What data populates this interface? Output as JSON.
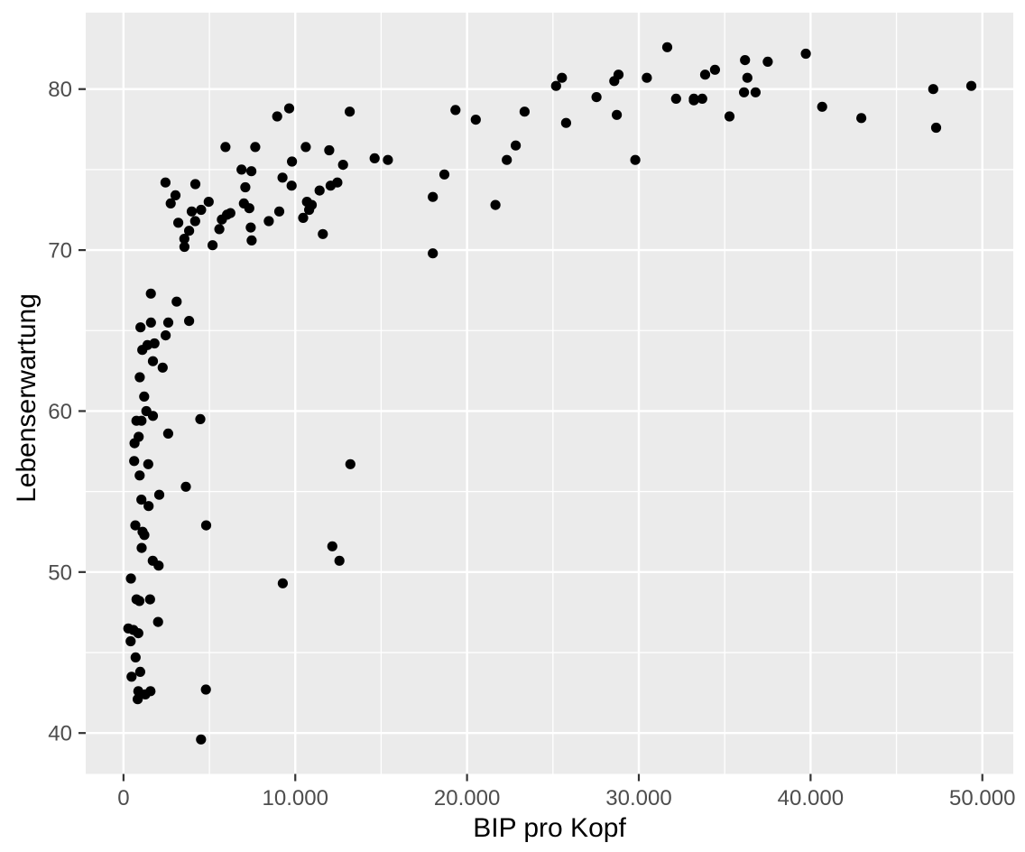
{
  "chart_data": {
    "type": "scatter",
    "title": "",
    "xlabel": "BIP pro Kopf",
    "ylabel": "Lebenserwartung",
    "xlim": [
      -2200,
      51800
    ],
    "ylim": [
      37.46,
      84.75
    ],
    "x_ticks": {
      "values": [
        0,
        10000,
        20000,
        30000,
        40000,
        50000
      ],
      "labels": [
        "0",
        "10.000",
        "20.000",
        "30.000",
        "40.000",
        "50.000"
      ],
      "minor": [
        5000,
        15000,
        25000,
        35000,
        45000
      ]
    },
    "y_ticks": {
      "values": [
        40,
        50,
        60,
        70,
        80
      ],
      "labels": [
        "40",
        "50",
        "60",
        "70",
        "80"
      ],
      "minor": [
        45,
        55,
        65,
        75
      ]
    },
    "grid": "major and minor white gridlines on gray panel",
    "legend": "none",
    "style": {
      "page_background": "#FFFFFF",
      "panel_background": "#EBEBEB",
      "grid_color": "#FFFFFF",
      "point_color": "#000000",
      "tick_label_color": "#4D4D4D",
      "axis_title_color": "#000000",
      "tick_mark_color": "#333333"
    },
    "points": [
      [
        974,
        43.8
      ],
      [
        5937,
        76.4
      ],
      [
        6223,
        72.3
      ],
      [
        4797,
        42.7
      ],
      [
        12779,
        75.3
      ],
      [
        34435,
        81.2
      ],
      [
        36126,
        79.8
      ],
      [
        29796,
        75.6
      ],
      [
        1391,
        64.1
      ],
      [
        33693,
        79.4
      ],
      [
        1441,
        56.7
      ],
      [
        3822,
        65.6
      ],
      [
        7446,
        74.9
      ],
      [
        12570,
        50.7
      ],
      [
        9066,
        72.4
      ],
      [
        10681,
        73.0
      ],
      [
        1217,
        52.3
      ],
      [
        430,
        49.6
      ],
      [
        1714,
        59.7
      ],
      [
        2042,
        50.4
      ],
      [
        36319,
        80.7
      ],
      [
        706,
        44.7
      ],
      [
        1704,
        50.7
      ],
      [
        13172,
        78.6
      ],
      [
        4959,
        73.0
      ],
      [
        7007,
        72.9
      ],
      [
        986,
        65.2
      ],
      [
        278,
        46.5
      ],
      [
        3633,
        55.3
      ],
      [
        9645,
        78.8
      ],
      [
        1545,
        48.3
      ],
      [
        14619,
        75.7
      ],
      [
        8948,
        78.3
      ],
      [
        22833,
        76.5
      ],
      [
        35278,
        78.3
      ],
      [
        2082,
        54.8
      ],
      [
        6025,
        72.2
      ],
      [
        6873,
        75.0
      ],
      [
        5581,
        71.3
      ],
      [
        5728,
        71.9
      ],
      [
        12154,
        51.6
      ],
      [
        641,
        58.0
      ],
      [
        691,
        52.9
      ],
      [
        33207,
        79.3
      ],
      [
        30470,
        80.7
      ],
      [
        13206,
        56.7
      ],
      [
        753,
        59.4
      ],
      [
        32170,
        79.4
      ],
      [
        1328,
        60.0
      ],
      [
        27538,
        79.5
      ],
      [
        5186,
        70.3
      ],
      [
        943,
        56.0
      ],
      [
        579,
        46.4
      ],
      [
        1202,
        60.9
      ],
      [
        3548,
        70.2
      ],
      [
        39725,
        82.2
      ],
      [
        18009,
        73.3
      ],
      [
        36181,
        81.8
      ],
      [
        2452,
        64.7
      ],
      [
        3541,
        70.7
      ],
      [
        11606,
        71.0
      ],
      [
        4471,
        59.5
      ],
      [
        40676,
        78.9
      ],
      [
        25523,
        80.7
      ],
      [
        28570,
        80.5
      ],
      [
        7321,
        72.6
      ],
      [
        31656,
        82.6
      ],
      [
        4519,
        72.5
      ],
      [
        1463,
        54.1
      ],
      [
        1593,
        67.3
      ],
      [
        23348,
        78.6
      ],
      [
        47307,
        77.6
      ],
      [
        10461,
        72.0
      ],
      [
        1569,
        42.6
      ],
      [
        415,
        45.7
      ],
      [
        12057,
        74.0
      ],
      [
        1045,
        59.4
      ],
      [
        759,
        48.3
      ],
      [
        12452,
        74.2
      ],
      [
        1043,
        54.5
      ],
      [
        1803,
        64.2
      ],
      [
        10957,
        72.8
      ],
      [
        11978,
        76.2
      ],
      [
        3096,
        66.8
      ],
      [
        9254,
        74.5
      ],
      [
        3820,
        71.2
      ],
      [
        824,
        42.1
      ],
      [
        944,
        62.1
      ],
      [
        4811,
        52.9
      ],
      [
        1091,
        63.8
      ],
      [
        36798,
        79.8
      ],
      [
        25185,
        80.2
      ],
      [
        2749,
        72.9
      ],
      [
        620,
        56.9
      ],
      [
        2014,
        46.9
      ],
      [
        49357,
        80.2
      ],
      [
        22316,
        75.6
      ],
      [
        2606,
        65.5
      ],
      [
        9809,
        75.5
      ],
      [
        4173,
        71.8
      ],
      [
        7409,
        71.4
      ],
      [
        3190,
        71.7
      ],
      [
        15390,
        75.6
      ],
      [
        20510,
        78.1
      ],
      [
        19329,
        78.7
      ],
      [
        7670,
        76.4
      ],
      [
        10808,
        72.5
      ],
      [
        863,
        46.2
      ],
      [
        1598,
        65.5
      ],
      [
        21655,
        72.8
      ],
      [
        1712,
        63.1
      ],
      [
        9787,
        74.0
      ],
      [
        863,
        42.6
      ],
      [
        47143,
        80.0
      ],
      [
        18678,
        74.7
      ],
      [
        25768,
        77.9
      ],
      [
        926,
        48.2
      ],
      [
        9270,
        49.3
      ],
      [
        28821,
        80.9
      ],
      [
        3970,
        72.4
      ],
      [
        2602,
        58.6
      ],
      [
        4513,
        39.6
      ],
      [
        33860,
        80.9
      ],
      [
        37506,
        81.7
      ],
      [
        4184,
        74.1
      ],
      [
        28718,
        78.4
      ],
      [
        1107,
        52.5
      ],
      [
        7458,
        70.6
      ],
      [
        883,
        58.4
      ],
      [
        18009,
        69.8
      ],
      [
        7093,
        73.9
      ],
      [
        8458,
        71.8
      ],
      [
        1056,
        51.5
      ],
      [
        33203,
        79.4
      ],
      [
        42952,
        78.2
      ],
      [
        10611,
        76.4
      ],
      [
        11416,
        73.7
      ],
      [
        3025,
        73.4
      ],
      [
        2442,
        74.2
      ],
      [
        2281,
        62.7
      ],
      [
        1271,
        42.4
      ],
      [
        470,
        43.5
      ]
    ]
  }
}
